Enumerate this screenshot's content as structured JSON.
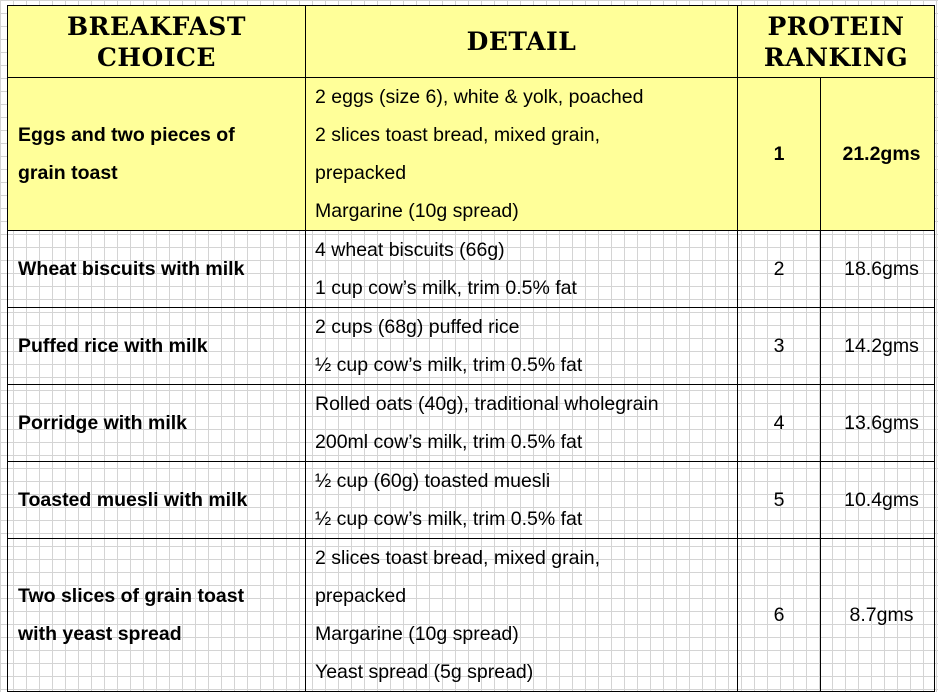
{
  "headers": {
    "choice": [
      "BREAKFAST",
      "CHOICE"
    ],
    "detail": "DETAIL",
    "ranking": [
      "PROTEIN",
      "RANKING"
    ]
  },
  "rows": [
    {
      "choice": [
        "Eggs and two pieces of",
        "grain toast"
      ],
      "details": [
        "2 eggs (size 6), white & yolk, poached",
        "2 slices toast bread, mixed grain,",
        "prepacked",
        "Margarine (10g spread)"
      ],
      "rank": "1",
      "protein": "21.2gms",
      "highlight": true
    },
    {
      "choice": [
        "Wheat biscuits with milk"
      ],
      "details": [
        "4 wheat biscuits (66g)",
        "1 cup cow’s milk, trim 0.5% fat"
      ],
      "rank": "2",
      "protein": "18.6gms"
    },
    {
      "choice": [
        "Puffed rice with milk"
      ],
      "details": [
        "2 cups (68g) puffed rice",
        "½ cup cow’s milk, trim 0.5% fat"
      ],
      "rank": "3",
      "protein": "14.2gms"
    },
    {
      "choice": [
        "Porridge with milk"
      ],
      "details": [
        "Rolled oats (40g), traditional wholegrain",
        "200ml cow’s milk, trim 0.5% fat"
      ],
      "rank": "4",
      "protein": "13.6gms"
    },
    {
      "choice": [
        "Toasted muesli with milk"
      ],
      "details": [
        "½ cup (60g) toasted muesli",
        "½ cup cow’s milk, trim 0.5% fat"
      ],
      "rank": "5",
      "protein": "10.4gms"
    },
    {
      "choice": [
        "Two slices of grain toast",
        "with yeast spread"
      ],
      "details": [
        "2 slices toast bread, mixed grain,",
        "prepacked",
        "Margarine (10g spread)",
        "Yeast spread (5g spread)"
      ],
      "rank": "6",
      "protein": "8.7gms"
    }
  ],
  "colors": {
    "header_bg": "#ffff99",
    "highlight_bg": "#ffff99",
    "grid_line": "#d4d4d4"
  }
}
